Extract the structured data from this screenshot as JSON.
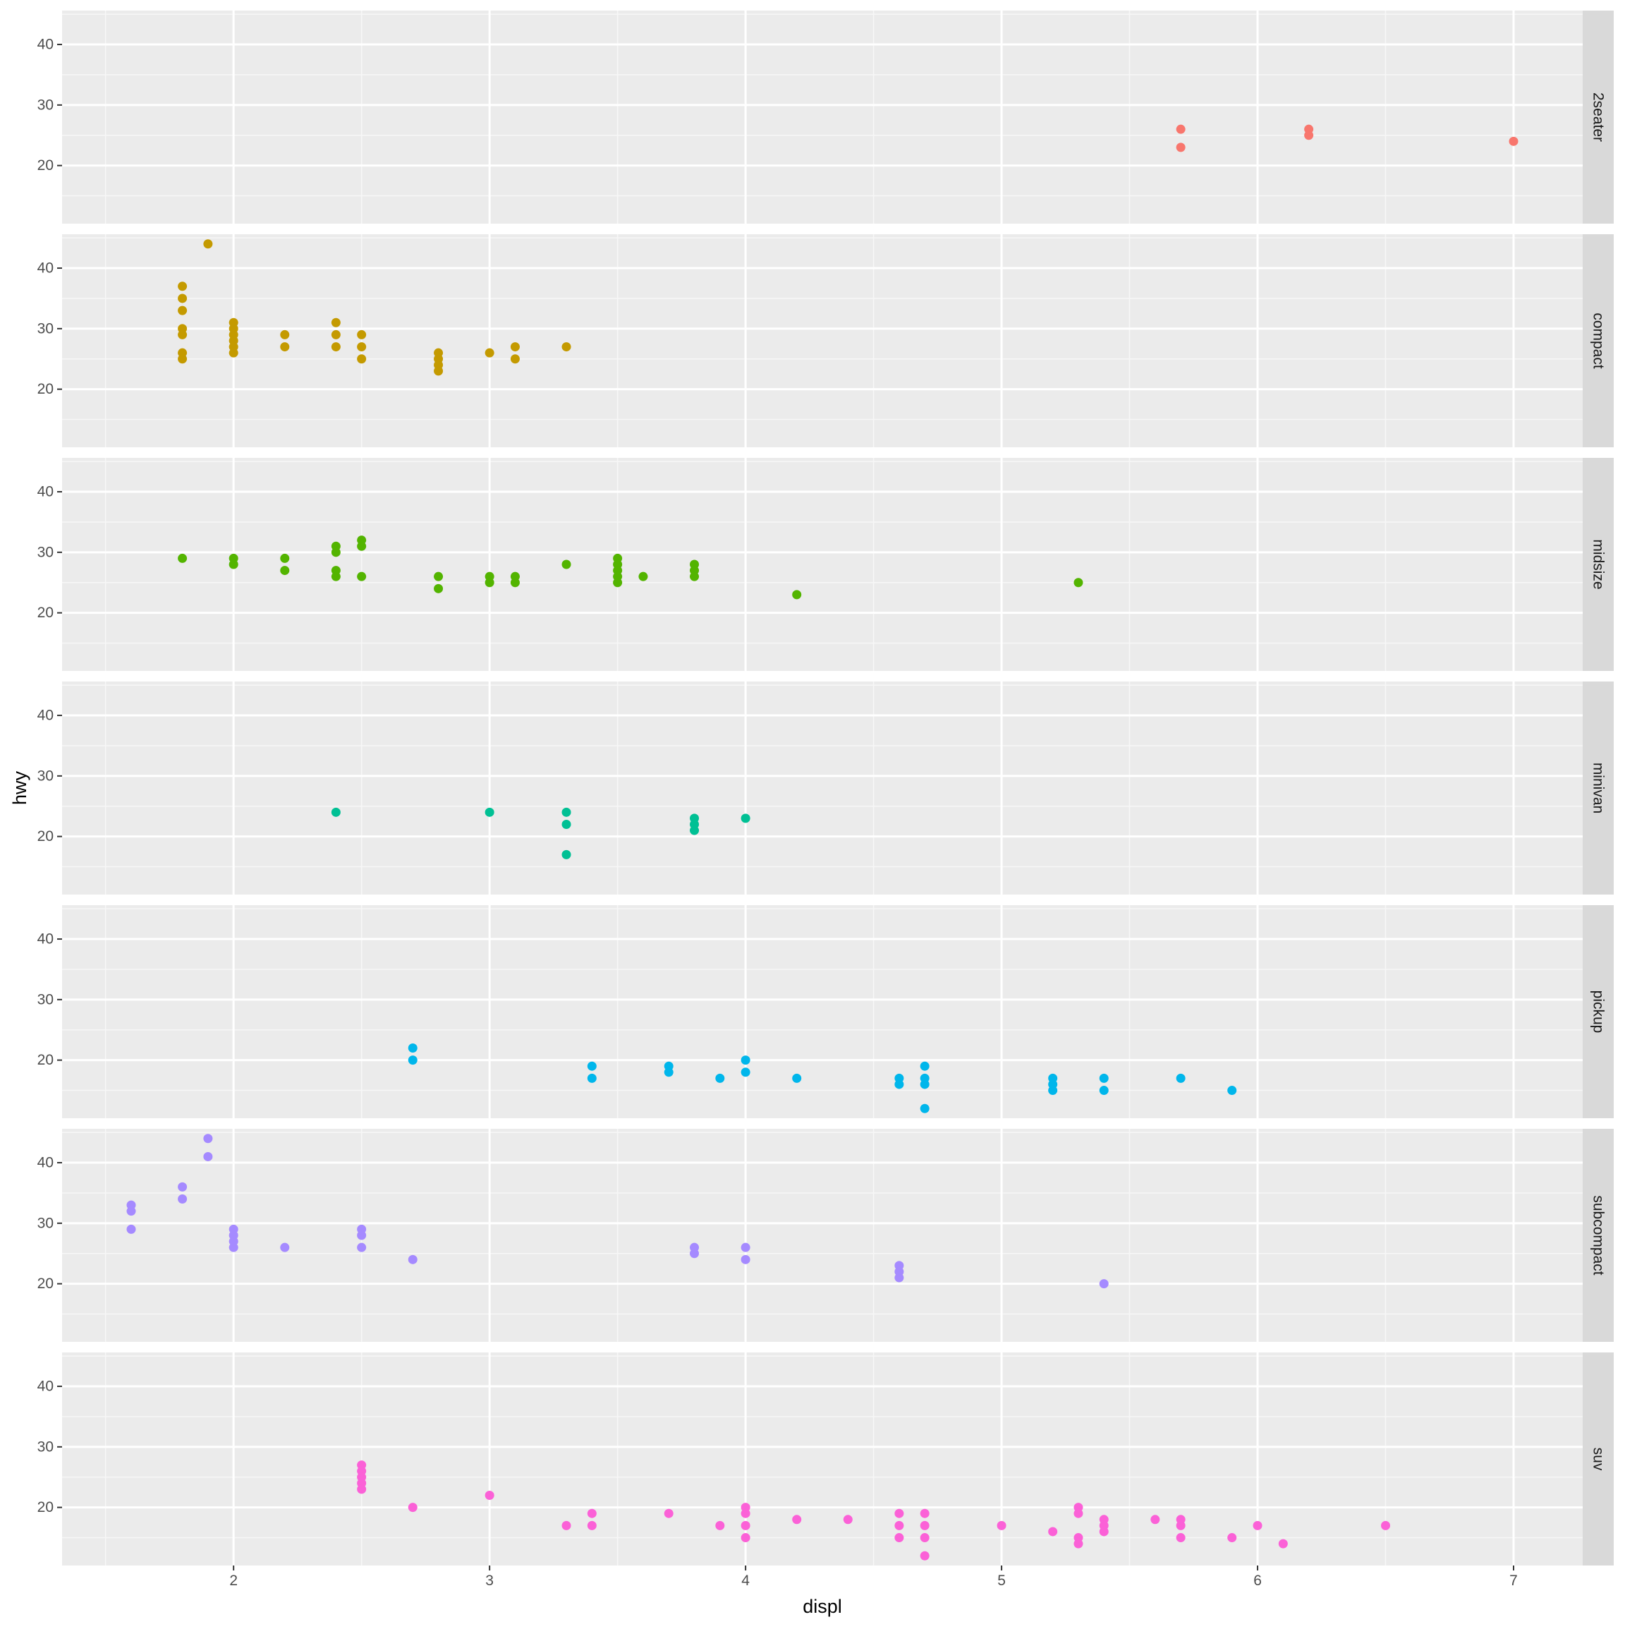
{
  "chart_data": {
    "type": "scatter",
    "facet_by": "class",
    "facet_direction": "rows",
    "xlabel": "displ",
    "ylabel": "hwy",
    "xlim": [
      1.33,
      7.27
    ],
    "ylim": [
      10.4,
      45.6
    ],
    "x_ticks": [
      2,
      3,
      4,
      5,
      6,
      7
    ],
    "y_ticks": [
      20,
      30,
      40
    ],
    "grid": true,
    "legend": "none",
    "facets": [
      {
        "label": "2seater",
        "color": "#F8766D",
        "points": [
          [
            5.7,
            26
          ],
          [
            5.7,
            23
          ],
          [
            6.2,
            26
          ],
          [
            6.2,
            25
          ],
          [
            7.0,
            24
          ]
        ]
      },
      {
        "label": "compact",
        "color": "#C49A00",
        "points": [
          [
            1.8,
            37
          ],
          [
            1.8,
            35
          ],
          [
            1.8,
            33
          ],
          [
            1.8,
            30
          ],
          [
            1.8,
            29
          ],
          [
            1.8,
            26
          ],
          [
            1.8,
            25
          ],
          [
            1.9,
            44
          ],
          [
            2.0,
            31
          ],
          [
            2.0,
            30
          ],
          [
            2.0,
            29
          ],
          [
            2.0,
            28
          ],
          [
            2.0,
            27
          ],
          [
            2.0,
            26
          ],
          [
            2.2,
            29
          ],
          [
            2.2,
            27
          ],
          [
            2.4,
            31
          ],
          [
            2.4,
            29
          ],
          [
            2.4,
            27
          ],
          [
            2.5,
            29
          ],
          [
            2.5,
            27
          ],
          [
            2.5,
            25
          ],
          [
            2.8,
            26
          ],
          [
            2.8,
            25
          ],
          [
            2.8,
            24
          ],
          [
            2.8,
            23
          ],
          [
            3.0,
            26
          ],
          [
            3.1,
            27
          ],
          [
            3.1,
            25
          ],
          [
            3.3,
            27
          ]
        ]
      },
      {
        "label": "midsize",
        "color": "#53B400",
        "points": [
          [
            1.8,
            29
          ],
          [
            2.0,
            29
          ],
          [
            2.0,
            28
          ],
          [
            2.2,
            29
          ],
          [
            2.2,
            27
          ],
          [
            2.4,
            31
          ],
          [
            2.4,
            30
          ],
          [
            2.4,
            27
          ],
          [
            2.4,
            26
          ],
          [
            2.5,
            32
          ],
          [
            2.5,
            31
          ],
          [
            2.5,
            26
          ],
          [
            2.8,
            26
          ],
          [
            2.8,
            24
          ],
          [
            3.0,
            26
          ],
          [
            3.0,
            25
          ],
          [
            3.1,
            26
          ],
          [
            3.1,
            25
          ],
          [
            3.3,
            28
          ],
          [
            3.5,
            29
          ],
          [
            3.5,
            28
          ],
          [
            3.5,
            27
          ],
          [
            3.5,
            26
          ],
          [
            3.5,
            25
          ],
          [
            3.6,
            26
          ],
          [
            3.8,
            28
          ],
          [
            3.8,
            27
          ],
          [
            3.8,
            26
          ],
          [
            4.2,
            23
          ],
          [
            5.3,
            25
          ]
        ]
      },
      {
        "label": "minivan",
        "color": "#00C094",
        "points": [
          [
            2.4,
            24
          ],
          [
            3.0,
            24
          ],
          [
            3.3,
            24
          ],
          [
            3.3,
            22
          ],
          [
            3.3,
            17
          ],
          [
            3.8,
            23
          ],
          [
            3.8,
            22
          ],
          [
            3.8,
            21
          ],
          [
            4.0,
            23
          ]
        ]
      },
      {
        "label": "pickup",
        "color": "#00B6EB",
        "points": [
          [
            2.7,
            22
          ],
          [
            2.7,
            20
          ],
          [
            3.4,
            19
          ],
          [
            3.4,
            17
          ],
          [
            3.7,
            19
          ],
          [
            3.7,
            18
          ],
          [
            3.9,
            17
          ],
          [
            4.0,
            20
          ],
          [
            4.0,
            18
          ],
          [
            4.2,
            17
          ],
          [
            4.6,
            17
          ],
          [
            4.6,
            16
          ],
          [
            4.7,
            19
          ],
          [
            4.7,
            17
          ],
          [
            4.7,
            16
          ],
          [
            4.7,
            12
          ],
          [
            5.2,
            17
          ],
          [
            5.2,
            16
          ],
          [
            5.2,
            15
          ],
          [
            5.4,
            17
          ],
          [
            5.4,
            15
          ],
          [
            5.7,
            17
          ],
          [
            5.9,
            15
          ]
        ]
      },
      {
        "label": "subcompact",
        "color": "#A58AFF",
        "points": [
          [
            1.6,
            33
          ],
          [
            1.6,
            32
          ],
          [
            1.6,
            29
          ],
          [
            1.8,
            36
          ],
          [
            1.8,
            34
          ],
          [
            1.9,
            44
          ],
          [
            1.9,
            41
          ],
          [
            2.0,
            29
          ],
          [
            2.0,
            28
          ],
          [
            2.0,
            27
          ],
          [
            2.0,
            26
          ],
          [
            2.2,
            26
          ],
          [
            2.5,
            29
          ],
          [
            2.5,
            28
          ],
          [
            2.5,
            26
          ],
          [
            2.7,
            24
          ],
          [
            3.8,
            26
          ],
          [
            3.8,
            25
          ],
          [
            4.0,
            26
          ],
          [
            4.0,
            24
          ],
          [
            4.6,
            23
          ],
          [
            4.6,
            22
          ],
          [
            4.6,
            21
          ],
          [
            5.4,
            20
          ]
        ]
      },
      {
        "label": "suv",
        "color": "#FB61D7",
        "points": [
          [
            2.5,
            27
          ],
          [
            2.5,
            26
          ],
          [
            2.5,
            25
          ],
          [
            2.5,
            24
          ],
          [
            2.5,
            23
          ],
          [
            2.7,
            20
          ],
          [
            3.0,
            22
          ],
          [
            3.3,
            17
          ],
          [
            3.4,
            19
          ],
          [
            3.4,
            17
          ],
          [
            3.7,
            19
          ],
          [
            3.9,
            17
          ],
          [
            4.0,
            20
          ],
          [
            4.0,
            19
          ],
          [
            4.0,
            17
          ],
          [
            4.0,
            15
          ],
          [
            4.2,
            18
          ],
          [
            4.4,
            18
          ],
          [
            4.6,
            19
          ],
          [
            4.6,
            17
          ],
          [
            4.6,
            15
          ],
          [
            4.7,
            19
          ],
          [
            4.7,
            17
          ],
          [
            4.7,
            15
          ],
          [
            4.7,
            12
          ],
          [
            5.0,
            17
          ],
          [
            5.2,
            16
          ],
          [
            5.3,
            20
          ],
          [
            5.3,
            19
          ],
          [
            5.3,
            15
          ],
          [
            5.3,
            14
          ],
          [
            5.4,
            18
          ],
          [
            5.4,
            17
          ],
          [
            5.4,
            16
          ],
          [
            5.6,
            18
          ],
          [
            5.7,
            18
          ],
          [
            5.7,
            17
          ],
          [
            5.7,
            15
          ],
          [
            5.9,
            15
          ],
          [
            6.0,
            17
          ],
          [
            6.1,
            14
          ],
          [
            6.5,
            17
          ]
        ]
      }
    ]
  }
}
